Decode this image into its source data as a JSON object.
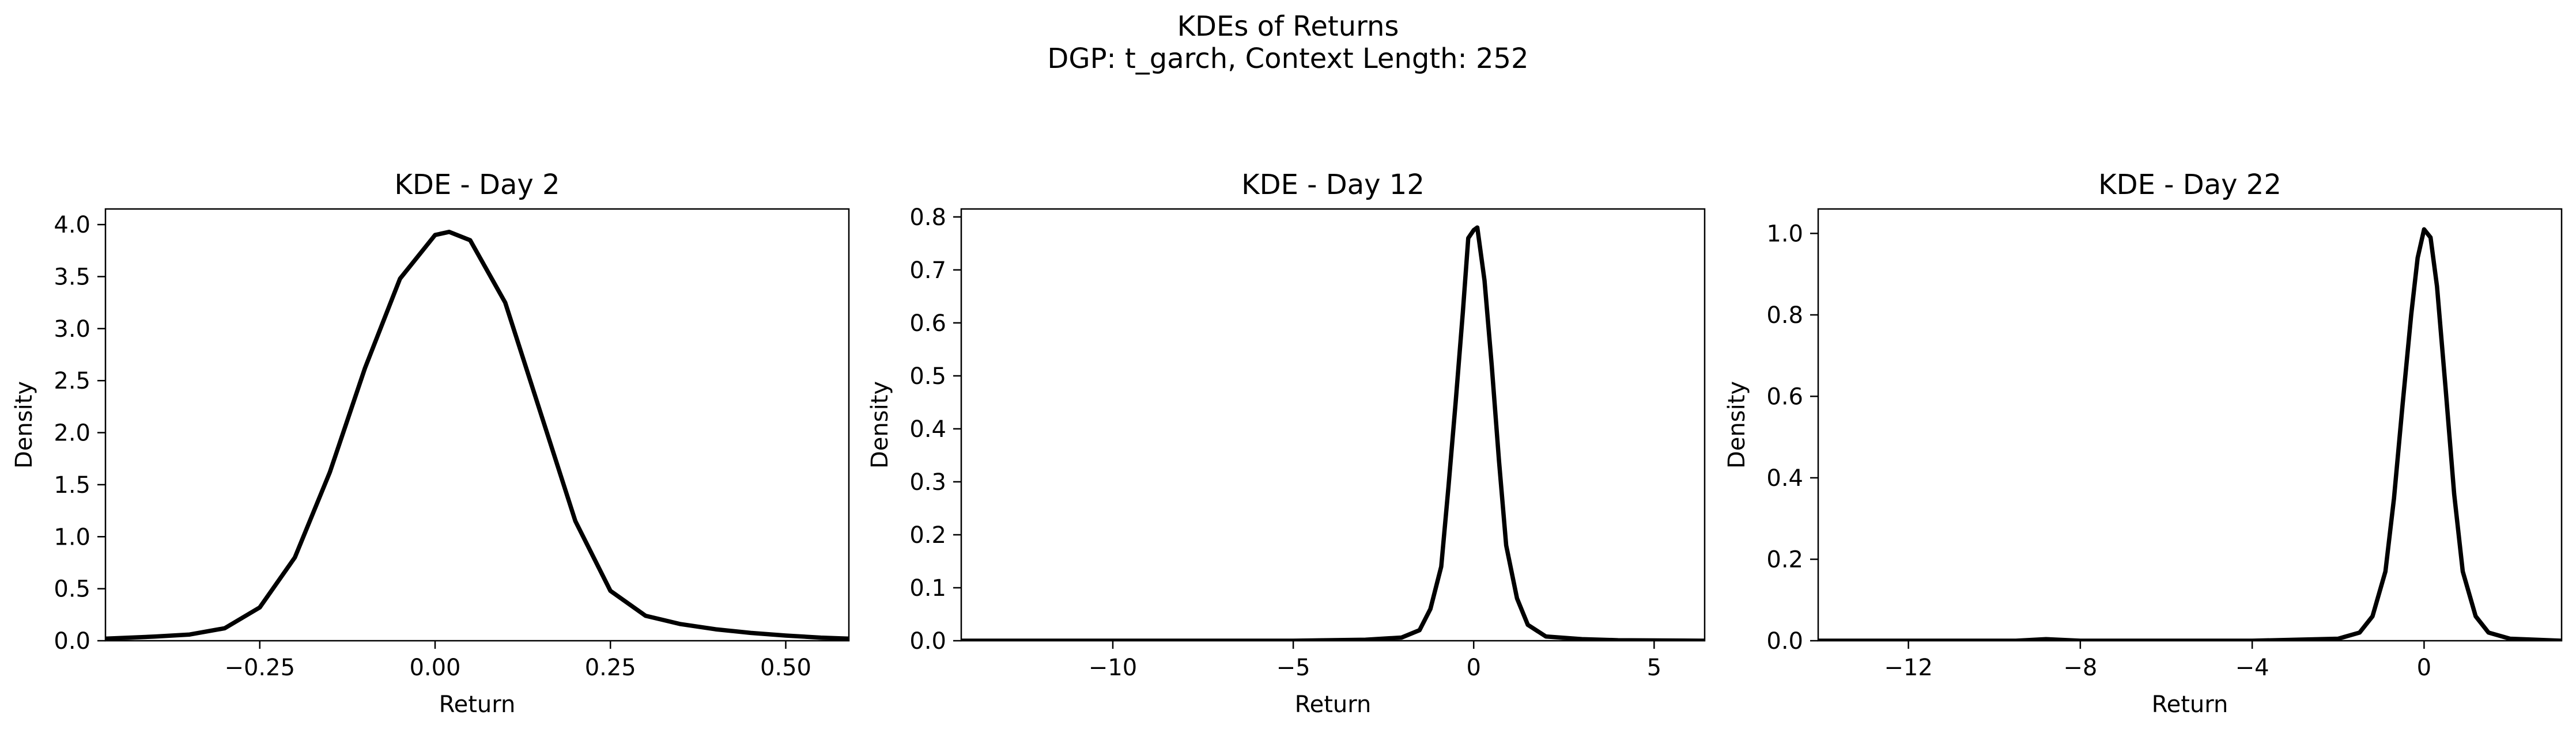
{
  "figure": {
    "title_line1": "KDEs of Returns",
    "title_line2": "DGP: t_garch, Context Length: 252"
  },
  "chart_data": [
    {
      "type": "line",
      "title": "KDE - Day 2",
      "xlabel": "Return",
      "ylabel": "Density",
      "xlim": [
        -0.47,
        0.59
      ],
      "ylim": [
        0,
        4.15
      ],
      "xticks": [
        -0.25,
        0.0,
        0.25,
        0.5
      ],
      "xtick_labels": [
        "−0.25",
        "0.00",
        "0.25",
        "0.50"
      ],
      "yticks": [
        0,
        0.5,
        1.0,
        1.5,
        2.0,
        2.5,
        3.0,
        3.5,
        4.0
      ],
      "ytick_labels": [
        "0.0",
        "0.5",
        "1.0",
        "1.5",
        "2.0",
        "2.5",
        "3.0",
        "3.5",
        "4.0"
      ],
      "grid": false,
      "color": "#000000",
      "series": [
        {
          "x": [
            -0.47,
            -0.4,
            -0.35,
            -0.3,
            -0.25,
            -0.2,
            -0.15,
            -0.1,
            -0.05,
            0.0,
            0.02,
            0.05,
            0.1,
            0.15,
            0.2,
            0.25,
            0.3,
            0.35,
            0.4,
            0.45,
            0.5,
            0.55,
            0.59
          ],
          "y": [
            0.02,
            0.04,
            0.06,
            0.12,
            0.32,
            0.8,
            1.62,
            2.62,
            3.48,
            3.9,
            3.93,
            3.85,
            3.25,
            2.2,
            1.15,
            0.48,
            0.24,
            0.16,
            0.11,
            0.075,
            0.05,
            0.03,
            0.02
          ]
        }
      ]
    },
    {
      "type": "line",
      "title": "KDE - Day 12",
      "xlabel": "Return",
      "ylabel": "Density",
      "xlim": [
        -14.2,
        6.4
      ],
      "ylim": [
        0,
        0.815
      ],
      "xticks": [
        -10,
        -5,
        0,
        5
      ],
      "xtick_labels": [
        "−10",
        "−5",
        "0",
        "5"
      ],
      "yticks": [
        0,
        0.1,
        0.2,
        0.3,
        0.4,
        0.5,
        0.6,
        0.7,
        0.8
      ],
      "ytick_labels": [
        "0.0",
        "0.1",
        "0.2",
        "0.3",
        "0.4",
        "0.5",
        "0.6",
        "0.7",
        "0.8"
      ],
      "grid": false,
      "color": "#000000",
      "series": [
        {
          "x": [
            -14.2,
            -5,
            -3,
            -2,
            -1.5,
            -1.2,
            -0.9,
            -0.7,
            -0.5,
            -0.3,
            -0.15,
            0.0,
            0.1,
            0.3,
            0.5,
            0.7,
            0.9,
            1.2,
            1.5,
            2.0,
            3.0,
            4.0,
            6.4
          ],
          "y": [
            0.0,
            0.0,
            0.002,
            0.006,
            0.02,
            0.06,
            0.14,
            0.29,
            0.45,
            0.62,
            0.76,
            0.775,
            0.78,
            0.68,
            0.52,
            0.34,
            0.18,
            0.08,
            0.03,
            0.008,
            0.003,
            0.001,
            0.0
          ]
        }
      ]
    },
    {
      "type": "line",
      "title": "KDE - Day 22",
      "xlabel": "Return",
      "ylabel": "Density",
      "xlim": [
        -14.1,
        3.2
      ],
      "ylim": [
        0,
        1.06
      ],
      "xticks": [
        -12,
        -8,
        -4,
        0
      ],
      "xtick_labels": [
        "−12",
        "−8",
        "−4",
        "0"
      ],
      "yticks": [
        0,
        0.2,
        0.4,
        0.6,
        0.8,
        1.0
      ],
      "ytick_labels": [
        "0.0",
        "0.2",
        "0.4",
        "0.6",
        "0.8",
        "1.0"
      ],
      "grid": false,
      "color": "#000000",
      "series": [
        {
          "x": [
            -14.1,
            -9.5,
            -8.8,
            -8.0,
            -4,
            -2.0,
            -1.5,
            -1.2,
            -0.9,
            -0.7,
            -0.5,
            -0.3,
            -0.15,
            0.0,
            0.15,
            0.3,
            0.5,
            0.7,
            0.9,
            1.2,
            1.5,
            2.0,
            3.2
          ],
          "y": [
            0.0,
            0.0,
            0.004,
            0.0,
            0.0,
            0.005,
            0.02,
            0.06,
            0.17,
            0.35,
            0.58,
            0.8,
            0.94,
            1.01,
            0.99,
            0.87,
            0.62,
            0.36,
            0.17,
            0.06,
            0.02,
            0.005,
            0.0
          ]
        }
      ]
    }
  ]
}
